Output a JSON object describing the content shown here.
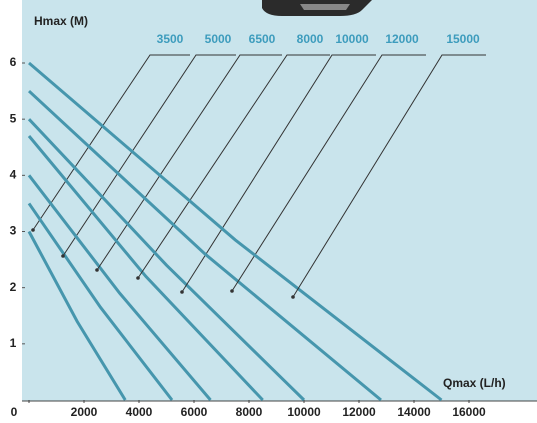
{
  "chart_data": {
    "type": "line",
    "ylabel": "Hmax (M)",
    "xlabel": "Qmax (L/h)",
    "xlim": [
      0,
      16000
    ],
    "ylim": [
      0,
      6
    ],
    "xticks": [
      0,
      2000,
      4000,
      6000,
      8000,
      10000,
      12000,
      14000,
      16000
    ],
    "yticks": [
      1,
      2,
      3,
      4,
      5,
      6
    ],
    "color": "#4696ad",
    "series": [
      {
        "name": "3500",
        "x": [
          0,
          1750,
          3500
        ],
        "values": [
          3.0,
          1.4,
          0
        ]
      },
      {
        "name": "5000",
        "x": [
          0,
          2600,
          5200
        ],
        "values": [
          3.5,
          1.65,
          0
        ]
      },
      {
        "name": "6500",
        "x": [
          0,
          3300,
          6600
        ],
        "values": [
          4.0,
          1.9,
          0
        ]
      },
      {
        "name": "8000",
        "x": [
          0,
          4250,
          8500
        ],
        "values": [
          4.7,
          2.2,
          0
        ]
      },
      {
        "name": "10000",
        "x": [
          0,
          5000,
          10000
        ],
        "values": [
          5.0,
          2.4,
          0
        ]
      },
      {
        "name": "12000",
        "x": [
          0,
          6400,
          12800
        ],
        "values": [
          5.5,
          2.6,
          0
        ]
      },
      {
        "name": "15000",
        "x": [
          0,
          7500,
          15000
        ],
        "values": [
          6.0,
          2.85,
          0
        ]
      }
    ]
  }
}
